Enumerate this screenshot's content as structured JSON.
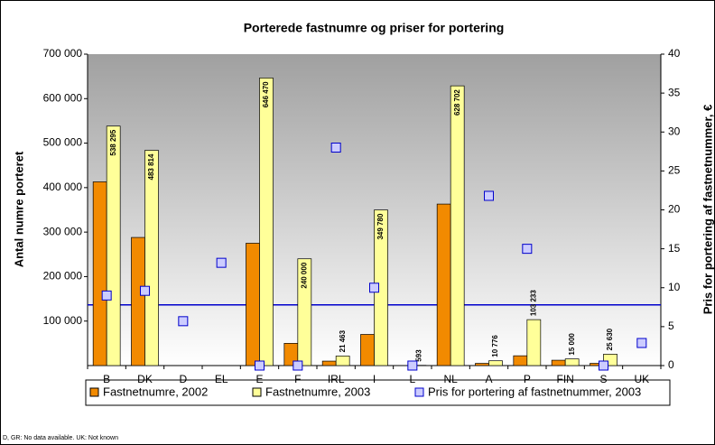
{
  "chart_data": {
    "type": "bar",
    "title": "Porterede fastnumre og priser for portering",
    "y_label": "Antal numre porteret",
    "y2_label": "Pris for portering af fastnetnummer, €",
    "footnote": "D, GR: No data available. UK: Not known",
    "categories": [
      "B",
      "DK",
      "D",
      "EL",
      "E",
      "F",
      "IRL",
      "I",
      "L",
      "NL",
      "A",
      "P",
      "FIN",
      "S",
      "UK"
    ],
    "series": [
      {
        "name": "Fastnetnumre, 2002",
        "type": "bar",
        "color": "#f28a00",
        "values": [
          413000,
          288000,
          null,
          null,
          275000,
          50000,
          10000,
          70000,
          0,
          363000,
          5000,
          22000,
          12000,
          5000,
          null
        ]
      },
      {
        "name": "Fastnetnumre, 2003",
        "type": "bar",
        "color": "#ffff99",
        "values": [
          538295,
          483814,
          null,
          null,
          646470,
          240000,
          21463,
          349780,
          593,
          628702,
          10776,
          103233,
          15000,
          25630,
          null
        ],
        "value_labels": [
          "538 295",
          "483 814",
          null,
          null,
          "646 470",
          "240 000",
          "21 463",
          "349 780",
          "593",
          "628 702",
          "10 776",
          "103 233",
          "15 000",
          "25 630",
          null
        ]
      },
      {
        "name": "Pris for portering af fastnetnummer, 2003",
        "type": "square",
        "axis": "y2",
        "color": "#ccccff",
        "values": [
          9,
          9.6,
          5.7,
          13.2,
          0,
          0,
          28,
          10,
          0,
          null,
          21.8,
          15,
          null,
          0,
          2.9
        ]
      }
    ],
    "ylim": [
      0,
      700000
    ],
    "yticks": [
      {
        "value": 100000,
        "label": "100 000"
      },
      {
        "value": 200000,
        "label": "200 000"
      },
      {
        "value": 300000,
        "label": "300 000"
      },
      {
        "value": 400000,
        "label": "400 000"
      },
      {
        "value": 500000,
        "label": "500 000"
      },
      {
        "value": 600000,
        "label": "600 000"
      },
      {
        "value": 700000,
        "label": "700 000"
      }
    ],
    "y2lim": [
      0,
      40
    ],
    "y2ticks": [
      0,
      5,
      10,
      15,
      20,
      25,
      30,
      35,
      40
    ],
    "reference_line": {
      "axis": "y2",
      "value": 7.8,
      "color": "#0000cc"
    },
    "legend": "bottom"
  }
}
